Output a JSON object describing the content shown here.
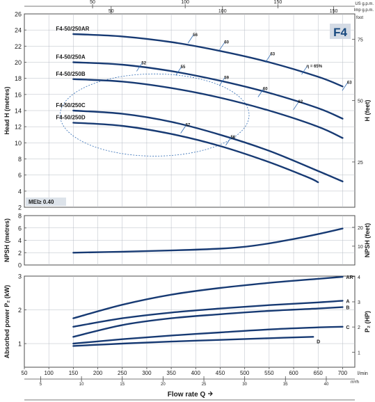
{
  "colors": {
    "curve": "#173a73",
    "eff": "#2f6bb4",
    "grid": "#b7bcc4",
    "frame": "#4b4b4b",
    "badge": "#d4dbe5",
    "badge_text": "#17487e",
    "mei_bg": "#dde3ea"
  },
  "top_axis": {
    "us_unit": "US g.p.m.",
    "imp_unit": "Imp g.p.m.",
    "foot": "foot",
    "us_ticks": [
      {
        "v": 50,
        "q": 11.36
      },
      {
        "v": 100,
        "q": 22.71
      },
      {
        "v": 150,
        "q": 34.07
      }
    ],
    "imp_ticks": [
      {
        "v": 50,
        "q": 13.64
      },
      {
        "v": 100,
        "q": 27.28
      },
      {
        "v": 150,
        "q": 40.91
      }
    ]
  },
  "chart_data": [
    {
      "type": "line",
      "name": "head",
      "model_badge": "F4",
      "ylabel": "Head H (metres)",
      "ylabel_right": "H (feet)",
      "ylim": [
        2,
        26
      ],
      "yticks": [
        2,
        4,
        6,
        8,
        10,
        12,
        14,
        16,
        18,
        20,
        22,
        24,
        26
      ],
      "y_right_ticks": [
        {
          "label": "25",
          "v": 7.62
        },
        {
          "label": "50",
          "v": 15.24
        },
        {
          "label": "75",
          "v": 22.86
        }
      ],
      "xlim": [
        50,
        725
      ],
      "series": [
        {
          "name": "F4-50/250AR",
          "x": [
            150,
            250,
            350,
            450,
            550,
            650,
            700
          ],
          "y": [
            23.5,
            23.2,
            22.5,
            21.4,
            20.0,
            18.2,
            17.0
          ]
        },
        {
          "name": "F4-50/250A",
          "x": [
            150,
            250,
            350,
            450,
            550,
            650,
            700
          ],
          "y": [
            20.0,
            19.7,
            18.9,
            17.7,
            16.2,
            14.3,
            13.0
          ]
        },
        {
          "name": "F4-50/250B",
          "x": [
            150,
            250,
            350,
            450,
            550,
            650,
            700
          ],
          "y": [
            17.9,
            17.6,
            16.8,
            15.6,
            14.0,
            12.0,
            10.6
          ]
        },
        {
          "name": "F4-50/250C",
          "x": [
            150,
            250,
            350,
            450,
            550,
            650,
            700
          ],
          "y": [
            14.0,
            13.6,
            12.6,
            11.0,
            9.0,
            6.5,
            5.2
          ]
        },
        {
          "name": "F4-50/250D",
          "x": [
            150,
            250,
            350,
            450,
            550,
            630,
            650
          ],
          "y": [
            12.5,
            12.1,
            11.1,
            9.6,
            7.6,
            5.7,
            5.1
          ]
        }
      ],
      "efficiency": {
        "ellipse": {
          "cx": 316,
          "cy": 13.45,
          "rx": 193,
          "ry": 5.1
        },
        "points": [
          {
            "label": "52",
            "x": 285,
            "y": 19.4
          },
          {
            "label": "55",
            "x": 365,
            "y": 18.9
          },
          {
            "label": "59",
            "x": 454,
            "y": 17.6
          },
          {
            "label": "60",
            "x": 533,
            "y": 16.2
          },
          {
            "label": "62",
            "x": 605,
            "y": 14.6
          },
          {
            "label": "57",
            "x": 375,
            "y": 11.7
          },
          {
            "label": "56",
            "x": 467,
            "y": 10.2
          },
          {
            "label": "56",
            "x": 390,
            "y": 22.9
          },
          {
            "label": "60",
            "x": 454,
            "y": 22.0
          },
          {
            "label": "63",
            "x": 548,
            "y": 20.5
          },
          {
            "label": "η = 65%",
            "x": 622,
            "y": 19.0
          },
          {
            "label": "63",
            "x": 705,
            "y": 17.0
          }
        ]
      },
      "mei_label": "MEI≥ 0.40"
    },
    {
      "type": "line",
      "name": "npsh",
      "ylabel": "NPSH (metres)",
      "ylabel_right": "NPSH (feet)",
      "ylim": [
        0,
        8
      ],
      "yticks": [
        0,
        2,
        4,
        6,
        8
      ],
      "y_right_ticks": [
        {
          "label": "10",
          "v": 3.05
        },
        {
          "label": "20",
          "v": 6.1
        }
      ],
      "series": [
        {
          "name": "NPSH",
          "x": [
            150,
            250,
            350,
            450,
            500,
            550,
            600,
            650,
            700
          ],
          "y": [
            2.0,
            2.15,
            2.35,
            2.65,
            2.95,
            3.5,
            4.2,
            5.0,
            5.9
          ]
        }
      ]
    },
    {
      "type": "line",
      "name": "power",
      "ylabel": "Absorbed power P₂ (kW)",
      "ylabel_right": "P₂ (HP)",
      "ylim": [
        0.3,
        3
      ],
      "yticks": [
        1,
        2,
        3
      ],
      "y_right_ticks": [
        {
          "label": "1",
          "v": 0.746
        },
        {
          "label": "2",
          "v": 1.492
        },
        {
          "label": "3",
          "v": 2.238
        },
        {
          "label": "4",
          "v": 2.984
        }
      ],
      "xlabel": "Flow rate Q",
      "xlim": [
        50,
        725
      ],
      "xticks": [
        50,
        100,
        150,
        200,
        250,
        300,
        350,
        400,
        450,
        500,
        550,
        600,
        650,
        700
      ],
      "x_unit": "l/min",
      "x_bottom_ticks": [
        {
          "label": "5",
          "v": 83.3
        },
        {
          "label": "10",
          "v": 166.7
        },
        {
          "label": "15",
          "v": 250
        },
        {
          "label": "20",
          "v": 333.3
        },
        {
          "label": "25",
          "v": 416.7
        },
        {
          "label": "30",
          "v": 500
        },
        {
          "label": "35",
          "v": 583.3
        },
        {
          "label": "40",
          "v": 666.7
        }
      ],
      "x_bottom_unit": "m³/h",
      "series": [
        {
          "name": "AR",
          "x": [
            150,
            250,
            350,
            450,
            550,
            650,
            700
          ],
          "y": [
            1.75,
            2.15,
            2.45,
            2.65,
            2.8,
            2.92,
            2.98
          ]
        },
        {
          "name": "A",
          "x": [
            150,
            250,
            350,
            450,
            550,
            650,
            700
          ],
          "y": [
            1.5,
            1.75,
            1.92,
            2.04,
            2.14,
            2.22,
            2.27
          ]
        },
        {
          "name": "B",
          "x": [
            150,
            250,
            350,
            450,
            550,
            650,
            700
          ],
          "y": [
            1.2,
            1.55,
            1.75,
            1.87,
            1.97,
            2.04,
            2.08
          ]
        },
        {
          "name": "C",
          "x": [
            150,
            250,
            350,
            450,
            550,
            650,
            700
          ],
          "y": [
            1.0,
            1.13,
            1.24,
            1.33,
            1.42,
            1.48,
            1.5
          ]
        },
        {
          "name": "D",
          "x": [
            150,
            250,
            350,
            450,
            550,
            640
          ],
          "y": [
            0.93,
            1.0,
            1.06,
            1.11,
            1.16,
            1.2
          ]
        }
      ]
    }
  ]
}
